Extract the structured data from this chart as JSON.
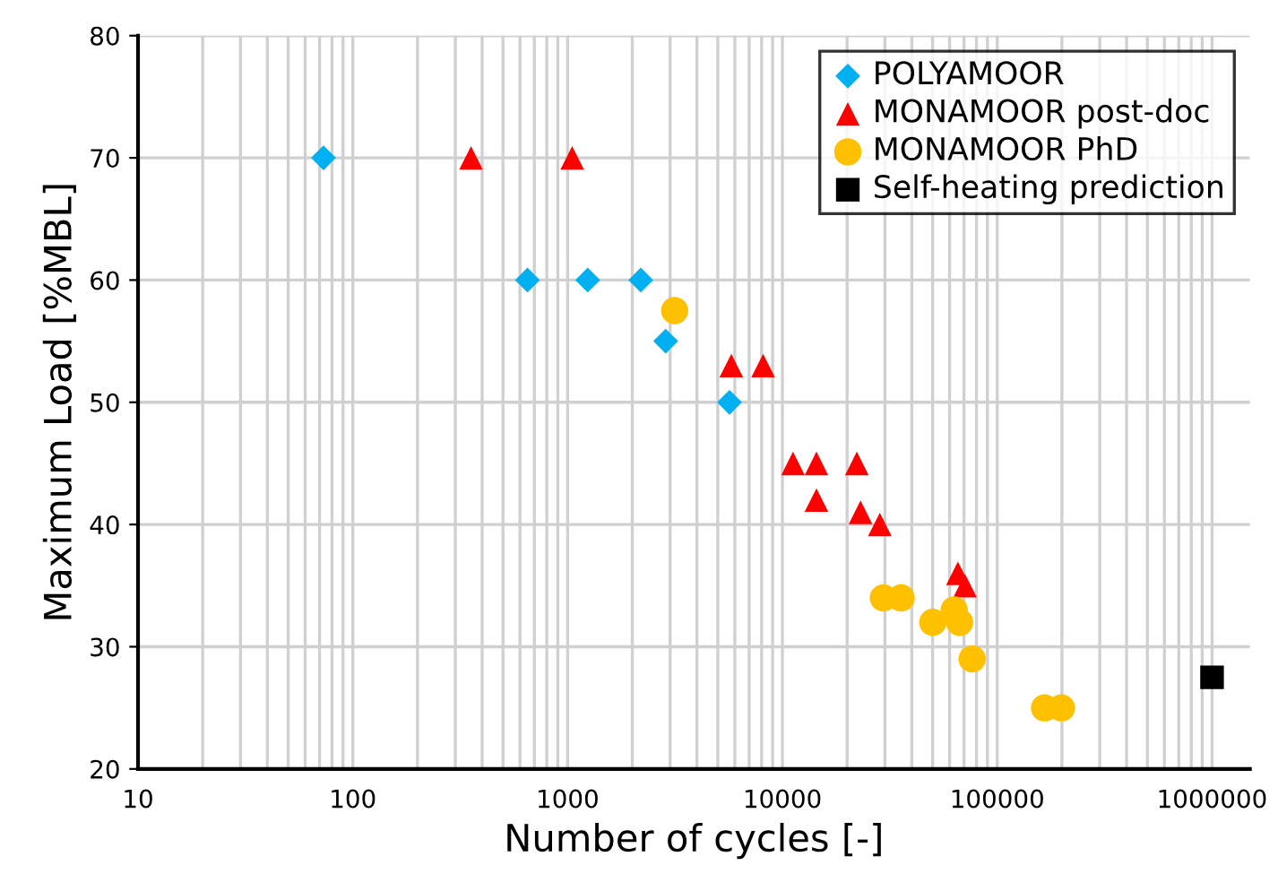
{
  "chart_data": {
    "type": "scatter",
    "xlabel": "Number of cycles [-]",
    "ylabel": "Maximum Load [%MBL]",
    "log": "x",
    "xlim": [
      10,
      1500000
    ],
    "ylim": [
      20,
      80
    ],
    "xticks": [
      10,
      {
        "value": 20,
        "label": null
      },
      {
        "value": 30,
        "label": null
      },
      {
        "value": 40,
        "label": null
      },
      {
        "value": 50,
        "label": null
      },
      {
        "value": 60,
        "label": null
      },
      {
        "value": 70,
        "label": null
      },
      {
        "value": 80,
        "label": null
      },
      {
        "value": 90,
        "label": null
      },
      100,
      {
        "value": 200,
        "label": null
      },
      {
        "value": 300,
        "label": null
      },
      {
        "value": 400,
        "label": null
      },
      {
        "value": 500,
        "label": null
      },
      {
        "value": 600,
        "label": null
      },
      {
        "value": 700,
        "label": null
      },
      {
        "value": 800,
        "label": null
      },
      {
        "value": 900,
        "label": null
      },
      1000,
      {
        "value": 2000,
        "label": null
      },
      {
        "value": 3000,
        "label": null
      },
      {
        "value": 4000,
        "label": null
      },
      {
        "value": 5000,
        "label": null
      },
      {
        "value": 6000,
        "label": null
      },
      {
        "value": 7000,
        "label": null
      },
      {
        "value": 8000,
        "label": null
      },
      {
        "value": 9000,
        "label": null
      },
      10000,
      {
        "value": 20000,
        "label": null
      },
      {
        "value": 30000,
        "label": null
      },
      {
        "value": 40000,
        "label": null
      },
      {
        "value": 50000,
        "label": null
      },
      {
        "value": 60000,
        "label": null
      },
      {
        "value": 70000,
        "label": null
      },
      {
        "value": 80000,
        "label": null
      },
      {
        "value": 90000,
        "label": null
      },
      100000,
      {
        "value": 200000,
        "label": null
      },
      {
        "value": 300000,
        "label": null
      },
      {
        "value": 400000,
        "label": null
      },
      {
        "value": 500000,
        "label": null
      },
      {
        "value": 600000,
        "label": null
      },
      {
        "value": 700000,
        "label": null
      },
      {
        "value": 800000,
        "label": null
      },
      {
        "value": 900000,
        "label": null
      },
      1000000
    ],
    "yticks": [
      20,
      30,
      40,
      50,
      60,
      70,
      80
    ],
    "grid": true,
    "legend": "top right",
    "series": [
      {
        "name": "POLYAMOOR",
        "color": "#00b0f0",
        "marker": "diamond",
        "x": [
          73,
          650,
          1240,
          2190,
          2860,
          5670
        ],
        "values": [
          70,
          60,
          60,
          60,
          55,
          50
        ]
      },
      {
        "name": "MONAMOOR post-doc",
        "color": "#ff0000",
        "marker": "triangle",
        "x": [
          355,
          1050,
          5780,
          8130,
          11200,
          14400,
          14400,
          22200,
          23100,
          28400,
          65600,
          70800
        ],
        "values": [
          70,
          70,
          53,
          53,
          45,
          45,
          42,
          45,
          41,
          40,
          36,
          35
        ]
      },
      {
        "name": "MONAMOOR PhD",
        "color": "#ffc000",
        "marker": "circle",
        "x": [
          3150,
          29500,
          35700,
          50100,
          63000,
          66800,
          76400,
          166000,
          199000
        ],
        "values": [
          57.5,
          34,
          34,
          32,
          33,
          32,
          29,
          25,
          25
        ]
      },
      {
        "name": "Self-heating prediction",
        "color": "#000000",
        "marker": "square",
        "x": [
          1000000
        ],
        "values": [
          27.5
        ]
      }
    ]
  }
}
